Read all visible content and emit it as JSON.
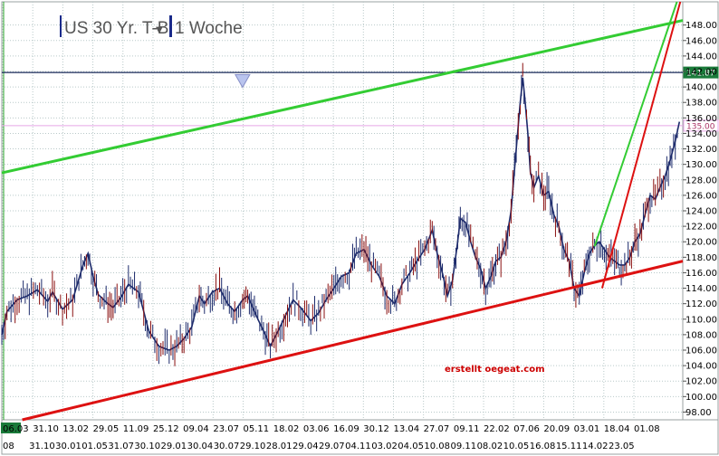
{
  "header": {
    "instrument": "US 30 Yr. T-B",
    "timeframe": "1 Woche"
  },
  "credit": "erstellt oegeat.com",
  "colors": {
    "price": "#1c2a6b",
    "price_alt": "#8a1010",
    "upper_channel": "#33cc33",
    "lower_channel": "#dd1111",
    "resistance": "#1a2a5a",
    "pink_level": "#e8a6e8",
    "grid": "#b9c9c9",
    "marker": "#b9c4ee",
    "date_box": "#1a7a3a"
  },
  "chart_data": {
    "type": "line",
    "title": "US 30 Yr. T-B",
    "subtitle": "1 Woche",
    "xlabel": "",
    "ylabel": "",
    "ylim": [
      97,
      151
    ],
    "y_ticks": [
      98,
      100,
      102,
      104,
      106,
      108,
      110,
      112,
      114,
      116,
      118,
      120,
      122,
      124,
      126,
      128,
      130,
      132,
      134,
      136,
      138,
      140,
      142,
      144,
      146,
      148
    ],
    "grid": true,
    "xlim": [
      "2000-05-15",
      "2011-07-30"
    ],
    "x_tick_labels_top": [
      "06.03",
      "31.10",
      "13.02",
      "29.05",
      "11.09",
      "25.12",
      "09.04",
      "23.07",
      "05.11",
      "18.02",
      "03.06",
      "16.09",
      "30.12",
      "13.04",
      "27.07",
      "09.11",
      "22.02",
      "07.06",
      "20.09",
      "03.01",
      "18.04",
      "01.08"
    ],
    "x_tick_labels_bottom": [
      "08",
      "31.10",
      "30.01",
      "01.05",
      "31.07",
      "30.10",
      "29.01",
      "30.04",
      "30.07",
      "29.10",
      "28.01",
      "29.04",
      "29.07",
      "04.11",
      "03.02",
      "04.05",
      "10.08",
      "09.11",
      "08.02",
      "10.05",
      "16.08",
      "15.11",
      "14.02",
      "23.05"
    ],
    "levels": [
      {
        "name": "resistance",
        "value": 141.87,
        "label": "141.87"
      },
      {
        "name": "pink",
        "value": 135.0,
        "label": "135.00"
      }
    ],
    "trendlines": [
      {
        "name": "upper channel",
        "points": [
          [
            "2000-05-15",
            128.9
          ],
          [
            "2011-07-30",
            148.6
          ]
        ]
      },
      {
        "name": "lower channel",
        "points": [
          [
            "2000-09-15",
            97.0
          ],
          [
            "2011-07-30",
            117.5
          ]
        ]
      },
      {
        "name": "steep support",
        "points": [
          [
            "2010-04-01",
            114.0
          ],
          [
            "2011-07-15",
            151.0
          ]
        ]
      },
      {
        "name": "steep channel",
        "points": [
          [
            "2010-02-15",
            119.4
          ],
          [
            "2011-06-25",
            151.0
          ]
        ]
      }
    ],
    "markers": [
      {
        "name": "triangle marker",
        "x": "2004-05-01",
        "y": 141.0
      }
    ],
    "series": [
      {
        "name": "US 30 Yr. T-B",
        "points": [
          [
            "2000-05-15",
            108.0
          ],
          [
            "2000-06-15",
            111.0
          ],
          [
            "2000-08-15",
            112.5
          ],
          [
            "2000-10-15",
            113.0
          ],
          [
            "2000-12-15",
            113.8
          ],
          [
            "2001-02-15",
            112.3
          ],
          [
            "2001-03-15",
            113.5
          ],
          [
            "2001-05-15",
            111.3
          ],
          [
            "2001-07-15",
            112.5
          ],
          [
            "2001-09-15",
            117.0
          ],
          [
            "2001-10-15",
            118.5
          ],
          [
            "2001-11-15",
            115.5
          ],
          [
            "2001-12-15",
            113.2
          ],
          [
            "2002-02-01",
            112.2
          ],
          [
            "2002-03-15",
            111.5
          ],
          [
            "2002-05-01",
            112.8
          ],
          [
            "2002-06-15",
            114.5
          ],
          [
            "2002-08-15",
            113.5
          ],
          [
            "2002-09-15",
            111.0
          ],
          [
            "2002-10-15",
            108.5
          ],
          [
            "2002-12-15",
            106.5
          ],
          [
            "2003-02-15",
            106.0
          ],
          [
            "2003-04-01",
            106.5
          ],
          [
            "2003-05-15",
            107.5
          ],
          [
            "2003-07-01",
            109.0
          ],
          [
            "2003-08-15",
            113.0
          ],
          [
            "2003-09-15",
            112.0
          ],
          [
            "2003-11-01",
            113.5
          ],
          [
            "2003-12-15",
            114.0
          ],
          [
            "2004-02-01",
            112.0
          ],
          [
            "2004-03-15",
            111.0
          ],
          [
            "2004-05-01",
            112.5
          ],
          [
            "2004-06-01",
            113.0
          ],
          [
            "2004-07-01",
            111.5
          ],
          [
            "2004-08-01",
            110.0
          ],
          [
            "2004-09-15",
            108.0
          ],
          [
            "2004-10-15",
            106.5
          ],
          [
            "2004-12-01",
            108.5
          ],
          [
            "2005-01-15",
            110.5
          ],
          [
            "2005-03-01",
            112.5
          ],
          [
            "2005-04-15",
            111.5
          ],
          [
            "2005-06-15",
            109.8
          ],
          [
            "2005-08-01",
            110.8
          ],
          [
            "2005-09-15",
            112.5
          ],
          [
            "2005-11-01",
            114.0
          ],
          [
            "2005-12-15",
            115.5
          ],
          [
            "2006-02-01",
            116.0
          ],
          [
            "2006-03-15",
            118.5
          ],
          [
            "2006-05-01",
            119.0
          ],
          [
            "2006-06-15",
            117.0
          ],
          [
            "2006-08-01",
            115.5
          ],
          [
            "2006-09-15",
            113.0
          ],
          [
            "2006-11-01",
            112.0
          ],
          [
            "2006-12-15",
            114.5
          ],
          [
            "2007-02-01",
            116.0
          ],
          [
            "2007-03-15",
            117.5
          ],
          [
            "2007-05-01",
            119.0
          ],
          [
            "2007-06-15",
            121.5
          ],
          [
            "2007-07-15",
            118.5
          ],
          [
            "2007-08-15",
            116.0
          ],
          [
            "2007-09-15",
            113.0
          ],
          [
            "2007-10-15",
            115.0
          ],
          [
            "2007-11-15",
            120.0
          ],
          [
            "2007-12-01",
            123.0
          ],
          [
            "2008-01-01",
            122.5
          ],
          [
            "2008-02-01",
            120.0
          ],
          [
            "2008-03-01",
            118.0
          ],
          [
            "2008-04-01",
            116.5
          ],
          [
            "2008-05-01",
            114.0
          ],
          [
            "2008-06-01",
            115.5
          ],
          [
            "2008-07-01",
            117.5
          ],
          [
            "2008-08-01",
            118.0
          ],
          [
            "2008-09-01",
            120.0
          ],
          [
            "2008-10-01",
            124.0
          ],
          [
            "2008-11-01",
            132.0
          ],
          [
            "2008-11-25",
            138.0
          ],
          [
            "2008-12-10",
            141.2
          ],
          [
            "2008-12-25",
            138.0
          ],
          [
            "2009-01-10",
            134.0
          ],
          [
            "2009-01-25",
            129.0
          ],
          [
            "2009-02-15",
            127.0
          ],
          [
            "2009-03-15",
            128.5
          ],
          [
            "2009-04-15",
            126.0
          ],
          [
            "2009-05-15",
            126.5
          ],
          [
            "2009-06-15",
            123.5
          ],
          [
            "2009-07-15",
            122.0
          ],
          [
            "2009-08-15",
            119.0
          ],
          [
            "2009-09-15",
            117.5
          ],
          [
            "2009-10-15",
            114.0
          ],
          [
            "2009-11-15",
            113.0
          ],
          [
            "2009-12-15",
            116.0
          ],
          [
            "2010-01-15",
            118.5
          ],
          [
            "2010-02-15",
            119.5
          ],
          [
            "2010-03-15",
            120.0
          ],
          [
            "2010-04-15",
            119.0
          ],
          [
            "2010-05-15",
            118.0
          ],
          [
            "2010-06-15",
            117.5
          ],
          [
            "2010-07-15",
            117.0
          ],
          [
            "2010-08-15",
            117.0
          ],
          [
            "2010-09-15",
            118.0
          ],
          [
            "2010-10-15",
            120.0
          ],
          [
            "2010-11-15",
            121.0
          ],
          [
            "2010-12-15",
            123.5
          ],
          [
            "2011-01-15",
            126.0
          ],
          [
            "2011-02-15",
            125.5
          ],
          [
            "2011-03-15",
            127.0
          ],
          [
            "2011-04-15",
            128.5
          ],
          [
            "2011-05-15",
            130.5
          ],
          [
            "2011-06-15",
            133.0
          ],
          [
            "2011-07-10",
            135.5
          ]
        ]
      }
    ]
  }
}
